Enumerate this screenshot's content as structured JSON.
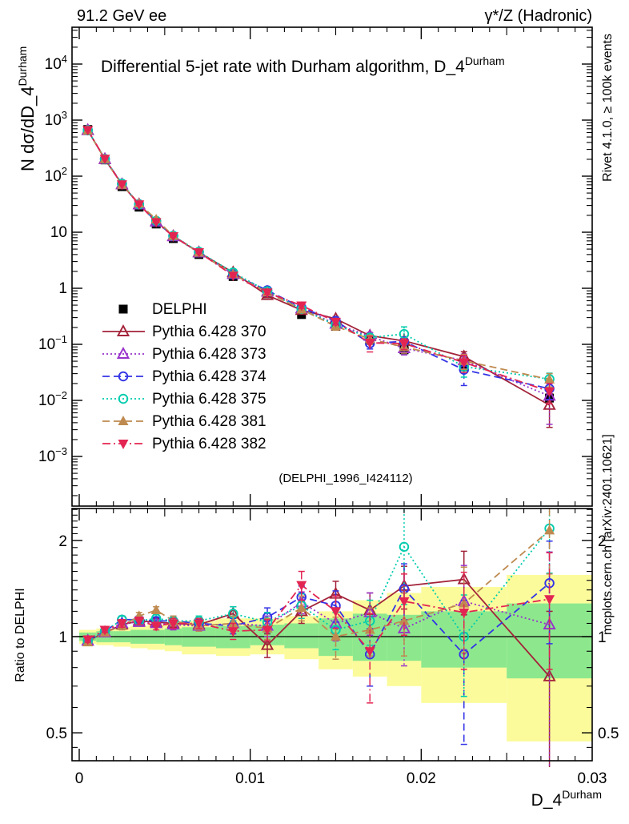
{
  "header": {
    "left": "91.2 GeV ee",
    "right": "γ*/Z (Hadronic)"
  },
  "titles": {
    "main": "Differential 5-jet rate with Durham algorithm, D_4",
    "main_sup": "Durham",
    "watermark": "(DELPHI_1996_I424112)",
    "xlabel_base": "D_4",
    "xlabel_sup": "Durham",
    "ylabel_main_base": "N  dσ/dD_4",
    "ylabel_main_sup": "Durham",
    "ylabel_ratio": "Ratio to DELPHI"
  },
  "side_notes": {
    "top_right": "Rivet 4.1.0, ≥ 100k events",
    "bottom_right": "mcplots.cern.ch [arXiv:2401.10621]"
  },
  "axis": {
    "x_ticks": [
      {
        "v": 0,
        "label": "0"
      },
      {
        "v": 0.01,
        "label": "0.01"
      },
      {
        "v": 0.02,
        "label": "0.02"
      },
      {
        "v": 0.03,
        "label": "0.03"
      }
    ],
    "main_y_ticks": [
      {
        "v": 10000,
        "base": "10",
        "sup": "4"
      },
      {
        "v": 1000,
        "base": "10",
        "sup": "3"
      },
      {
        "v": 100,
        "base": "10",
        "sup": "2"
      },
      {
        "v": 10,
        "base": "10",
        "sup": ""
      },
      {
        "v": 1,
        "base": "1",
        "sup": ""
      },
      {
        "v": 0.1,
        "base": "10",
        "sup": "−1"
      },
      {
        "v": 0.01,
        "base": "10",
        "sup": "−2"
      },
      {
        "v": 0.001,
        "base": "10",
        "sup": "−3"
      }
    ],
    "ratio_y_ticks": [
      {
        "v": 2,
        "label": "2"
      },
      {
        "v": 1,
        "label": "1"
      },
      {
        "v": 0.5,
        "label": "0.5"
      }
    ]
  },
  "legend": [
    {
      "label": "DELPHI",
      "color": "#000000",
      "marker": "square-filled",
      "line": "none"
    },
    {
      "label": "Pythia 6.428 370",
      "color": "#a3233a",
      "marker": "triangle-up-open",
      "line": "solid"
    },
    {
      "label": "Pythia 6.428 373",
      "color": "#9832cb",
      "marker": "triangle-up-open",
      "line": "dot"
    },
    {
      "label": "Pythia 6.428 374",
      "color": "#3333e6",
      "marker": "circle-open",
      "line": "dash"
    },
    {
      "label": "Pythia 6.428 375",
      "color": "#00ccad",
      "marker": "circle-open",
      "line": "dot"
    },
    {
      "label": "Pythia 6.428 381",
      "color": "#bf8a50",
      "marker": "triangle-up-filled",
      "line": "dash"
    },
    {
      "label": "Pythia 6.428 382",
      "color": "#e32552",
      "marker": "triangle-down-filled",
      "line": "dashdot"
    }
  ],
  "chart_data": {
    "type": "line",
    "title": "Differential 5-jet rate with Durham algorithm, D_4^Durham",
    "xlabel": "D_4^Durham",
    "ylabel_main": "N dσ/dD_4^Durham",
    "ylabel_ratio": "Ratio to DELPHI",
    "grid": false,
    "legend_position": "upper-left-inside",
    "xlim": [
      -0.0004,
      0.03
    ],
    "main_ylim_log": [
      0.00014,
      42000
    ],
    "ratio_ylim_log": [
      0.41,
      2.53
    ],
    "bin_edges": [
      0,
      0.001,
      0.002,
      0.003,
      0.004,
      0.005,
      0.006,
      0.008,
      0.01,
      0.012,
      0.014,
      0.016,
      0.018,
      0.02,
      0.025,
      0.03
    ],
    "x": [
      0.0005,
      0.0015,
      0.0025,
      0.0035,
      0.0045,
      0.0055,
      0.007,
      0.009,
      0.011,
      0.013,
      0.015,
      0.017,
      0.019,
      0.0225,
      0.0275
    ],
    "reference": {
      "name": "DELPHI",
      "values": [
        680,
        195,
        65,
        28,
        14,
        7.7,
        4.0,
        1.62,
        0.8,
        0.34,
        0.21,
        0.118,
        0.08,
        0.04,
        0.011
      ]
    },
    "series": [
      {
        "name": "Pythia 6.428 370",
        "color": "#a3233a",
        "marker": "triangle-up-open",
        "line": "solid",
        "ratio": [
          0.97,
          1.03,
          1.09,
          1.12,
          1.11,
          1.1,
          1.09,
          1.18,
          0.94,
          1.2,
          1.36,
          1.21,
          1.44,
          1.51,
          0.75
        ],
        "err": [
          0.02,
          0.02,
          0.03,
          0.03,
          0.03,
          0.04,
          0.04,
          0.06,
          0.08,
          0.1,
          0.13,
          0.16,
          0.22,
          0.34,
          0.45
        ]
      },
      {
        "name": "Pythia 6.428 373",
        "color": "#9832cb",
        "marker": "triangle-up-open",
        "line": "dot",
        "ratio": [
          0.97,
          1.03,
          1.1,
          1.11,
          1.1,
          1.09,
          1.08,
          1.1,
          1.08,
          1.28,
          1.1,
          1.19,
          1.06,
          1.29,
          1.09
        ],
        "err": [
          0.02,
          0.02,
          0.03,
          0.03,
          0.03,
          0.04,
          0.04,
          0.06,
          0.08,
          0.1,
          0.13,
          0.18,
          0.25,
          0.38,
          0.75
        ]
      },
      {
        "name": "Pythia 6.428 374",
        "color": "#3333e6",
        "marker": "circle-open",
        "line": "dash",
        "ratio": [
          0.97,
          1.04,
          1.13,
          1.13,
          1.12,
          1.12,
          1.1,
          1.08,
          1.15,
          1.33,
          1.25,
          0.88,
          1.41,
          0.88,
          1.47
        ],
        "err": [
          0.02,
          0.02,
          0.03,
          0.03,
          0.03,
          0.04,
          0.04,
          0.06,
          0.08,
          0.11,
          0.14,
          0.18,
          0.28,
          0.42,
          0.52
        ]
      },
      {
        "name": "Pythia 6.428 375",
        "color": "#00ccad",
        "marker": "circle-open",
        "line": "dot",
        "ratio": [
          0.97,
          1.04,
          1.13,
          1.12,
          1.14,
          1.12,
          1.12,
          1.18,
          1.11,
          1.25,
          1.05,
          1.12,
          1.91,
          1.0,
          2.18
        ],
        "err": [
          0.02,
          0.02,
          0.03,
          0.03,
          0.03,
          0.04,
          0.04,
          0.06,
          0.08,
          0.11,
          0.14,
          0.18,
          0.65,
          0.35,
          0.6
        ]
      },
      {
        "name": "Pythia 6.428 381",
        "color": "#bf8a50",
        "marker": "triangle-up-filled",
        "line": "dash",
        "ratio": [
          0.96,
          1.03,
          1.08,
          1.16,
          1.21,
          1.12,
          1.08,
          1.1,
          1.06,
          1.23,
          1.0,
          1.05,
          1.12,
          1.27,
          2.15
        ],
        "err": [
          0.02,
          0.02,
          0.03,
          0.03,
          0.03,
          0.04,
          0.04,
          0.06,
          0.08,
          0.11,
          0.15,
          0.18,
          0.25,
          0.38,
          0.58
        ]
      },
      {
        "name": "Pythia 6.428 382",
        "color": "#e32552",
        "marker": "triangle-down-filled",
        "line": "dashdot",
        "ratio": [
          0.98,
          1.05,
          1.1,
          1.12,
          1.08,
          1.1,
          1.1,
          1.04,
          1.05,
          1.45,
          1.2,
          0.9,
          1.29,
          1.19,
          1.31
        ],
        "err": [
          0.02,
          0.02,
          0.03,
          0.03,
          0.03,
          0.04,
          0.04,
          0.06,
          0.08,
          0.15,
          0.14,
          0.28,
          0.28,
          0.4,
          0.52
        ]
      }
    ],
    "bands": {
      "yellow": {
        "color": "#fbfb9b",
        "ranges": [
          [
            0.95,
            1.05
          ],
          [
            0.94,
            1.06
          ],
          [
            0.93,
            1.07
          ],
          [
            0.92,
            1.08
          ],
          [
            0.91,
            1.09
          ],
          [
            0.9,
            1.1
          ],
          [
            0.88,
            1.12
          ],
          [
            0.87,
            1.14
          ],
          [
            0.88,
            1.14
          ],
          [
            0.85,
            1.16
          ],
          [
            0.79,
            1.2
          ],
          [
            0.75,
            1.3
          ],
          [
            0.7,
            1.37
          ],
          [
            0.62,
            1.43
          ],
          [
            0.47,
            1.56
          ]
        ]
      },
      "green": {
        "color": "#8de88d",
        "ranges": [
          [
            0.97,
            1.03
          ],
          [
            0.96,
            1.04
          ],
          [
            0.96,
            1.04
          ],
          [
            0.95,
            1.05
          ],
          [
            0.95,
            1.05
          ],
          [
            0.94,
            1.06
          ],
          [
            0.93,
            1.07
          ],
          [
            0.92,
            1.08
          ],
          [
            0.94,
            1.09
          ],
          [
            0.92,
            1.1
          ],
          [
            0.87,
            1.14
          ],
          [
            0.84,
            1.18
          ],
          [
            0.84,
            1.17
          ],
          [
            0.8,
            1.2
          ],
          [
            0.74,
            1.27
          ]
        ]
      }
    }
  }
}
